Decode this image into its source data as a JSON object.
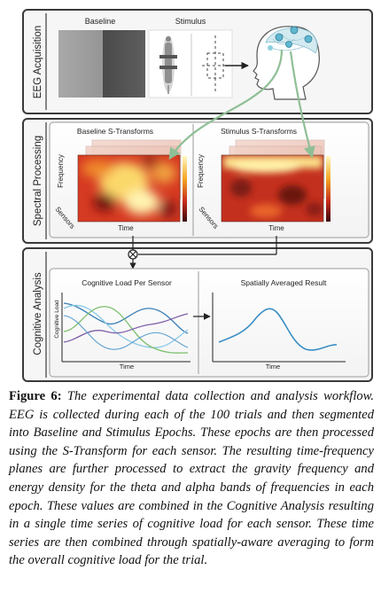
{
  "panels": {
    "acquisition": {
      "side_label": "EEG Acquisition",
      "baseline_label": "Baseline",
      "stimulus_label": "Stimulus"
    },
    "spectral": {
      "side_label": "Spectral Processing",
      "baseline_title": "Baseline S-Transforms",
      "stimulus_title": "Stimulus S-Transforms",
      "axis_frequency": "Frequency",
      "axis_sensors": "Sensors",
      "axis_time": "Time"
    },
    "cognitive": {
      "side_label": "Cognitive Analysis",
      "left_title": "Cognitive Load Per Sensor",
      "left_ylabel": "Cognitive Load",
      "left_xlabel": "Time",
      "right_title": "Spatially Averaged Result",
      "right_xlabel": "Time",
      "combine_symbol": "⊗"
    }
  },
  "colors": {
    "panel_border": "#3a3a3a",
    "connector": "#8fbf95",
    "head_glow": "#7ec8d8",
    "series": [
      "#3a7fb5",
      "#8bc9e6",
      "#7cbf6c",
      "#7e5fa8"
    ],
    "result_line": "#3a8fc4"
  },
  "caption": {
    "label": "Figure 6:",
    "text": "The experimental data collection and analysis workflow. EEG is collected during each of the 100 trials and then segmented into Baseline and Stimulus Epochs. These epochs are then processed using the S-Transform for each sensor. The resulting time-frequency planes are further processed to extract the gravity frequency and energy density for the theta and alpha bands of frequencies in each epoch. These values are combined in the Cognitive Analysis resulting in a single time series of cognitive load for each sensor. These time series are then combined through spatially-aware averaging to form the overall cognitive load for the trial."
  }
}
